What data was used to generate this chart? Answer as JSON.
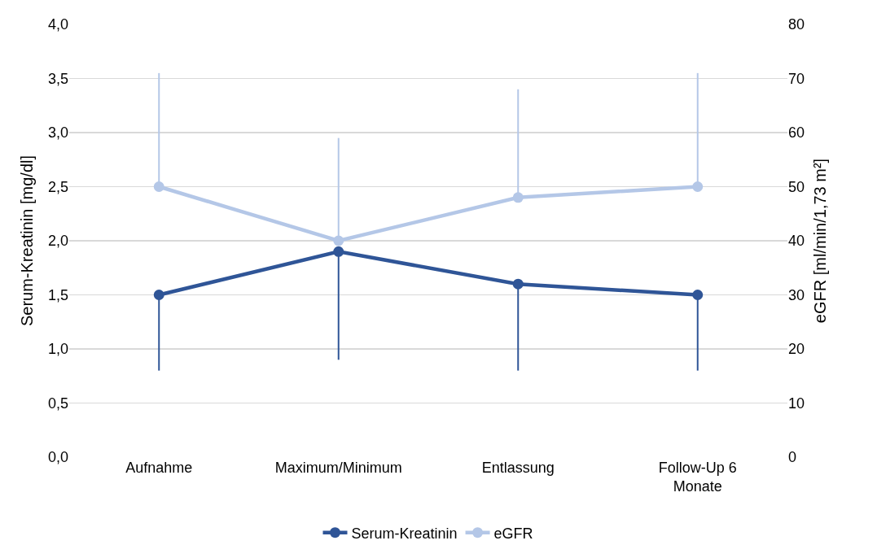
{
  "chart_data": {
    "type": "line",
    "ylabel": "Serum-Kreatinin [mg/dl]",
    "y2label": "eGFR [ml/min/1,73 m²]",
    "categories": [
      "Aufnahme",
      "Maximum/Minimum",
      "Entlassung",
      "Follow-Up 6 Monate"
    ],
    "series": [
      {
        "name": "Serum-Kreatinin",
        "color": "#2f5597",
        "values": [
          1.5,
          1.9,
          1.6,
          1.5
        ],
        "errors": [
          [
            0.8,
            1.5
          ],
          [
            0.9,
            1.9
          ],
          [
            0.8,
            1.6
          ],
          [
            0.8,
            1.5
          ]
        ]
      },
      {
        "name": "eGFR",
        "color": "#b4c7e7",
        "axis": "y2",
        "values": [
          50,
          40,
          48,
          50
        ],
        "errors": [
          [
            50,
            71
          ],
          [
            40,
            59
          ],
          [
            48,
            68
          ],
          [
            50,
            71
          ]
        ]
      }
    ],
    "ylim": [
      0,
      4
    ],
    "yticks": [
      {
        "value": 0,
        "label": "0,0"
      },
      {
        "value": 0.5,
        "label": "0,5"
      },
      {
        "value": 1,
        "label": "1,0"
      },
      {
        "value": 1.5,
        "label": "1,5"
      },
      {
        "value": 2,
        "label": "2,0"
      },
      {
        "value": 2.5,
        "label": "2,5"
      },
      {
        "value": 3,
        "label": "3,0"
      },
      {
        "value": 3.5,
        "label": "3,5"
      },
      {
        "value": 4,
        "label": "4,0"
      }
    ],
    "y2lim": [
      0,
      80
    ],
    "y2ticks": [
      0,
      10,
      20,
      30,
      40,
      50,
      60,
      70,
      80
    ],
    "grid": "y",
    "legend": "bottom",
    "marker": "circle",
    "line_style": "solid"
  }
}
